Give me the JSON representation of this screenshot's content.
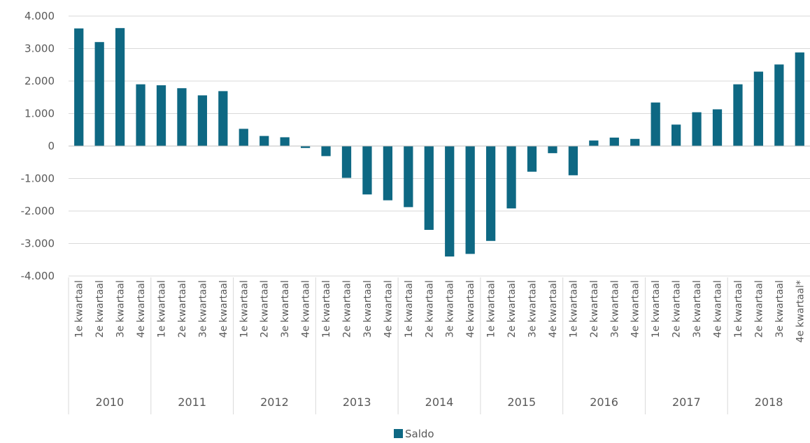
{
  "chart_data": {
    "type": "bar",
    "ylim": [
      -4000,
      4000
    ],
    "y_ticks": [
      4000,
      3000,
      2000,
      1000,
      0,
      -1000,
      -2000,
      -3000,
      -4000
    ],
    "y_tick_labels": [
      "4.000",
      "3.000",
      "2.000",
      "1.000",
      "0",
      "-1.000",
      "-2.000",
      "-3.000",
      "-4.000"
    ],
    "grid": true,
    "legend_position": "bottom",
    "bar_color": "#0e6883",
    "groups": [
      {
        "year": "2010",
        "categories": [
          "1e kwartaal",
          "2e kwartaal",
          "3e kwartaal",
          "4e kwartaal"
        ]
      },
      {
        "year": "2011",
        "categories": [
          "1e kwartaal",
          "2e kwartaal",
          "3e kwartaal",
          "4e kwartaal"
        ]
      },
      {
        "year": "2012",
        "categories": [
          "1e kwartaal",
          "2e kwartaal",
          "3e kwartaal",
          "4e kwartaal"
        ]
      },
      {
        "year": "2013",
        "categories": [
          "1e kwartaal",
          "2e kwartaal",
          "3e kwartaal",
          "4e kwartaal"
        ]
      },
      {
        "year": "2014",
        "categories": [
          "1e kwartaal",
          "2e kwartaal",
          "3e kwartaal",
          "4e kwartaal"
        ]
      },
      {
        "year": "2015",
        "categories": [
          "1e kwartaal",
          "2e kwartaal",
          "3e kwartaal",
          "4e kwartaal"
        ]
      },
      {
        "year": "2016",
        "categories": [
          "1e kwartaal",
          "2e kwartaal",
          "3e kwartaal",
          "4e kwartaal"
        ]
      },
      {
        "year": "2017",
        "categories": [
          "1e kwartaal",
          "2e kwartaal",
          "3e kwartaal",
          "4e kwartaal"
        ]
      },
      {
        "year": "2018",
        "categories": [
          "1e kwartaal",
          "2e kwartaal",
          "3e kwartaal",
          "4e kwartaal*"
        ]
      }
    ],
    "series": [
      {
        "name": "Saldo",
        "values": [
          3620,
          3200,
          3630,
          1900,
          1870,
          1780,
          1560,
          1690,
          530,
          310,
          270,
          -60,
          -310,
          -980,
          -1490,
          -1670,
          -1880,
          -2580,
          -3400,
          -3320,
          -2920,
          -1920,
          -790,
          -220,
          -900,
          170,
          260,
          220,
          1340,
          660,
          1040,
          1130,
          1900,
          2290,
          2510,
          2880
        ]
      }
    ]
  }
}
